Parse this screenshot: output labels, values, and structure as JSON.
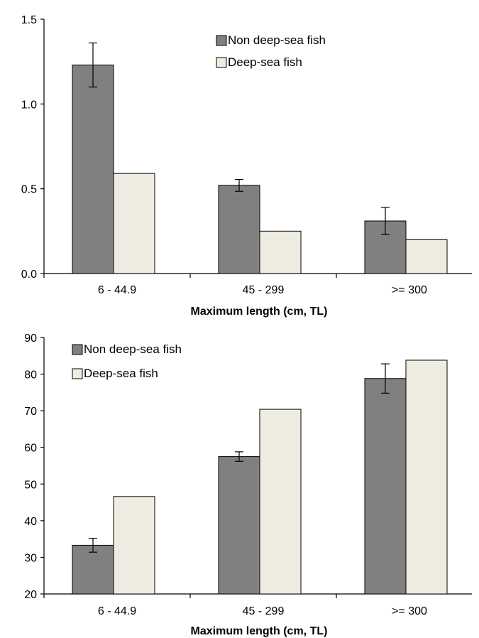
{
  "chart_data": [
    {
      "type": "bar",
      "title": "",
      "xlabel": "Maximum length (cm, TL)",
      "ylabel": "",
      "ylim": [
        0,
        1.5
      ],
      "yticks": [
        "0.0",
        "0.5",
        "1.0",
        "1.5"
      ],
      "categories": [
        "6 - 44.9",
        "45 - 299",
        ">= 300"
      ],
      "series": [
        {
          "name": "Non deep-sea fish",
          "color": "#808080",
          "values": [
            1.23,
            0.52,
            0.31
          ],
          "error": [
            0.13,
            0.035,
            0.08
          ]
        },
        {
          "name": "Deep-sea fish",
          "color": "#eeece1",
          "values": [
            0.59,
            0.25,
            0.2
          ],
          "error": null
        }
      ],
      "legend": "top-right",
      "grid": false
    },
    {
      "type": "bar",
      "title": "",
      "xlabel": "Maximum length (cm, TL)",
      "ylabel": "",
      "ylim": [
        20,
        90
      ],
      "yticks": [
        "20",
        "30",
        "40",
        "50",
        "60",
        "70",
        "80",
        "90"
      ],
      "categories": [
        "6 - 44.9",
        "45 - 299",
        ">= 300"
      ],
      "series": [
        {
          "name": "Non deep-sea fish",
          "color": "#808080",
          "values": [
            33.3,
            57.5,
            78.8
          ],
          "error": [
            1.9,
            1.3,
            4.0
          ]
        },
        {
          "name": "Deep-sea fish",
          "color": "#eeece1",
          "values": [
            46.6,
            70.4,
            83.8
          ],
          "error": null
        }
      ],
      "legend": "top-left",
      "grid": false
    }
  ]
}
